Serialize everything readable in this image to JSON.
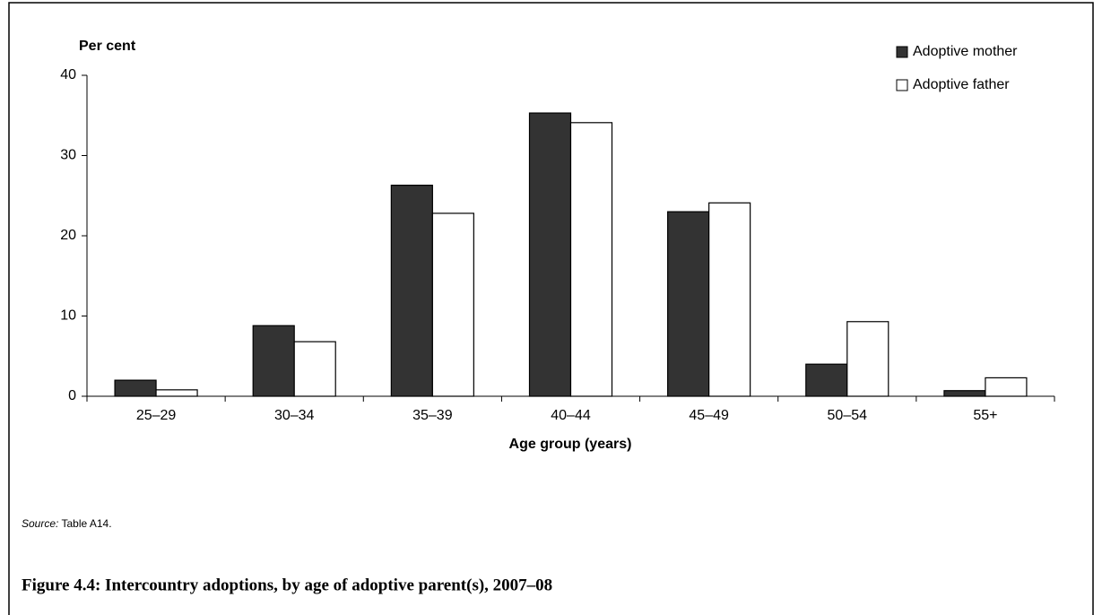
{
  "chart_data": {
    "type": "bar",
    "title": "Figure 4.4: Intercountry adoptions, by age of adoptive parent(s), 2007–08",
    "y_label": "Per cent",
    "x_label": "Age group (years)",
    "source_label": "Source:",
    "source_text": "Table A14.",
    "categories": [
      "25–29",
      "30–34",
      "35–39",
      "40–44",
      "45–49",
      "50–54",
      "55+"
    ],
    "series": [
      {
        "name": "Adoptive mother",
        "color": "#333333",
        "values": [
          2.0,
          8.8,
          26.3,
          35.3,
          23.0,
          4.0,
          0.7
        ]
      },
      {
        "name": "Adoptive father",
        "color": "#ffffff",
        "values": [
          0.8,
          6.8,
          22.8,
          34.1,
          24.1,
          9.3,
          2.3
        ]
      }
    ],
    "ylim": [
      0,
      40
    ],
    "yticks": [
      0,
      10,
      20,
      30,
      40
    ],
    "legend": "top-right"
  }
}
